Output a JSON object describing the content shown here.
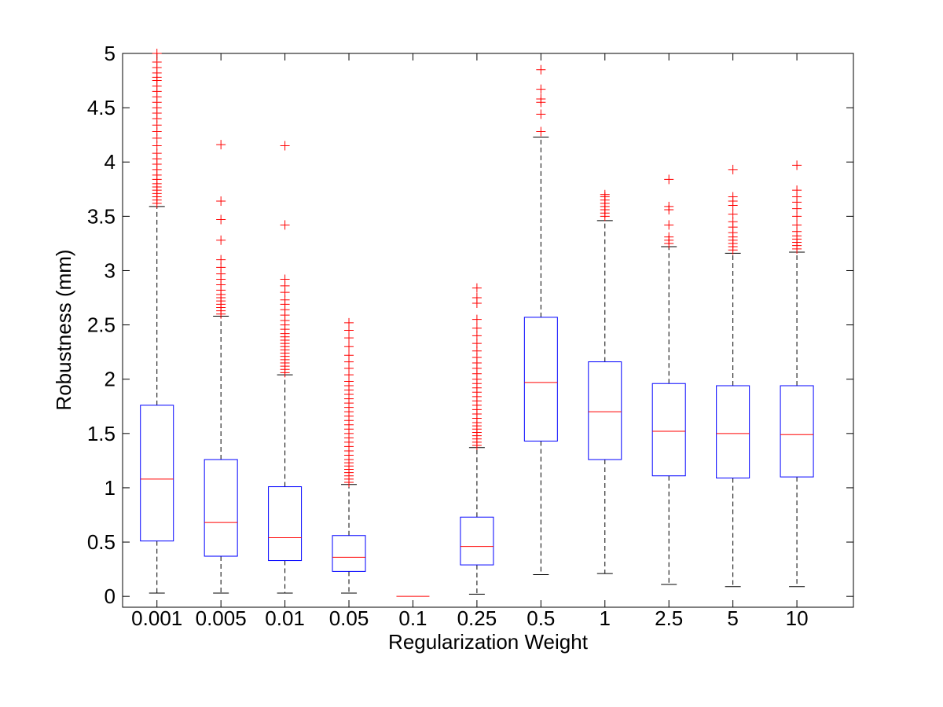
{
  "chart_data": {
    "type": "box",
    "title": "",
    "xlabel": "Regularization Weight",
    "ylabel": "Robustness (mm)",
    "ylim": [
      -0.1,
      5
    ],
    "yticks": [
      0,
      0.5,
      1,
      1.5,
      2,
      2.5,
      3,
      3.5,
      4,
      4.5,
      5
    ],
    "ytick_labels": [
      "0",
      "0.5",
      "1",
      "1.5",
      "2",
      "2.5",
      "3",
      "3.5",
      "4",
      "4.5",
      "5"
    ],
    "grid": false,
    "colors": {
      "box": "#0000ff",
      "median": "#ff0000",
      "outlier": "#ff0000",
      "whisker": "#000000",
      "frame": "#000000"
    },
    "categories": [
      "0.001",
      "0.005",
      "0.01",
      "0.05",
      "0.1",
      "0.25",
      "0.5",
      "1",
      "2.5",
      "5",
      "10"
    ],
    "boxes": [
      {
        "whislo": 0.03,
        "q1": 0.51,
        "median": 1.08,
        "q3": 1.76,
        "whishi": 3.59,
        "outliers": [
          3.62,
          3.65,
          3.68,
          3.71,
          3.74,
          3.77,
          3.8,
          3.84,
          3.88,
          3.93,
          3.98,
          4.03,
          4.08,
          4.15,
          4.22,
          4.28,
          4.34,
          4.4,
          4.45,
          4.5,
          4.55,
          4.6,
          4.65,
          4.7,
          4.75,
          4.78,
          4.82,
          4.87,
          4.92,
          5.0
        ]
      },
      {
        "whislo": 0.03,
        "q1": 0.37,
        "median": 0.68,
        "q3": 1.26,
        "whishi": 2.58,
        "outliers": [
          2.6,
          2.63,
          2.66,
          2.69,
          2.72,
          2.75,
          2.78,
          2.82,
          2.87,
          2.92,
          2.97,
          3.03,
          3.1,
          3.28,
          3.47,
          3.64,
          4.16
        ]
      },
      {
        "whislo": 0.03,
        "q1": 0.33,
        "median": 0.54,
        "q3": 1.01,
        "whishi": 2.04,
        "outliers": [
          2.06,
          2.09,
          2.12,
          2.15,
          2.18,
          2.21,
          2.24,
          2.27,
          2.3,
          2.33,
          2.36,
          2.39,
          2.42,
          2.46,
          2.5,
          2.54,
          2.59,
          2.64,
          2.69,
          2.73,
          2.8,
          2.86,
          2.92,
          3.42,
          4.15
        ]
      },
      {
        "whislo": 0.03,
        "q1": 0.23,
        "median": 0.36,
        "q3": 0.56,
        "whishi": 1.03,
        "outliers": [
          1.05,
          1.08,
          1.11,
          1.14,
          1.17,
          1.2,
          1.23,
          1.26,
          1.3,
          1.34,
          1.38,
          1.42,
          1.46,
          1.5,
          1.54,
          1.58,
          1.62,
          1.66,
          1.7,
          1.74,
          1.78,
          1.82,
          1.86,
          1.9,
          1.94,
          1.98,
          2.04,
          2.1,
          2.16,
          2.22,
          2.3,
          2.38,
          2.45,
          2.52
        ]
      },
      {
        "whislo": 0.0,
        "q1": 0.0,
        "median": 0.0,
        "q3": 0.0,
        "whishi": 0.0,
        "outliers": []
      },
      {
        "whislo": 0.02,
        "q1": 0.29,
        "median": 0.46,
        "q3": 0.73,
        "whishi": 1.37,
        "outliers": [
          1.39,
          1.42,
          1.45,
          1.48,
          1.51,
          1.54,
          1.57,
          1.6,
          1.64,
          1.68,
          1.72,
          1.76,
          1.8,
          1.84,
          1.88,
          1.92,
          1.96,
          2.0,
          2.05,
          2.1,
          2.15,
          2.2,
          2.26,
          2.33,
          2.4,
          2.47,
          2.55,
          2.7,
          2.75,
          2.84
        ]
      },
      {
        "whislo": 0.2,
        "q1": 1.43,
        "median": 1.97,
        "q3": 2.57,
        "whishi": 4.23,
        "outliers": [
          4.28,
          4.44,
          4.55,
          4.58,
          4.67,
          4.85
        ]
      },
      {
        "whislo": 0.21,
        "q1": 1.26,
        "median": 1.7,
        "q3": 2.16,
        "whishi": 3.46,
        "outliers": [
          3.5,
          3.53,
          3.56,
          3.59,
          3.62,
          3.65,
          3.68,
          3.7
        ]
      },
      {
        "whislo": 0.11,
        "q1": 1.11,
        "median": 1.52,
        "q3": 1.96,
        "whishi": 3.22,
        "outliers": [
          3.25,
          3.28,
          3.31,
          3.42,
          3.56,
          3.59,
          3.84
        ]
      },
      {
        "whislo": 0.09,
        "q1": 1.09,
        "median": 1.5,
        "q3": 1.94,
        "whishi": 3.16,
        "outliers": [
          3.19,
          3.22,
          3.25,
          3.28,
          3.31,
          3.35,
          3.4,
          3.45,
          3.52,
          3.6,
          3.64,
          3.68,
          3.93
        ]
      },
      {
        "whislo": 0.09,
        "q1": 1.1,
        "median": 1.49,
        "q3": 1.94,
        "whishi": 3.17,
        "outliers": [
          3.2,
          3.23,
          3.26,
          3.29,
          3.32,
          3.36,
          3.42,
          3.5,
          3.57,
          3.63,
          3.68,
          3.74,
          3.97
        ]
      }
    ]
  }
}
